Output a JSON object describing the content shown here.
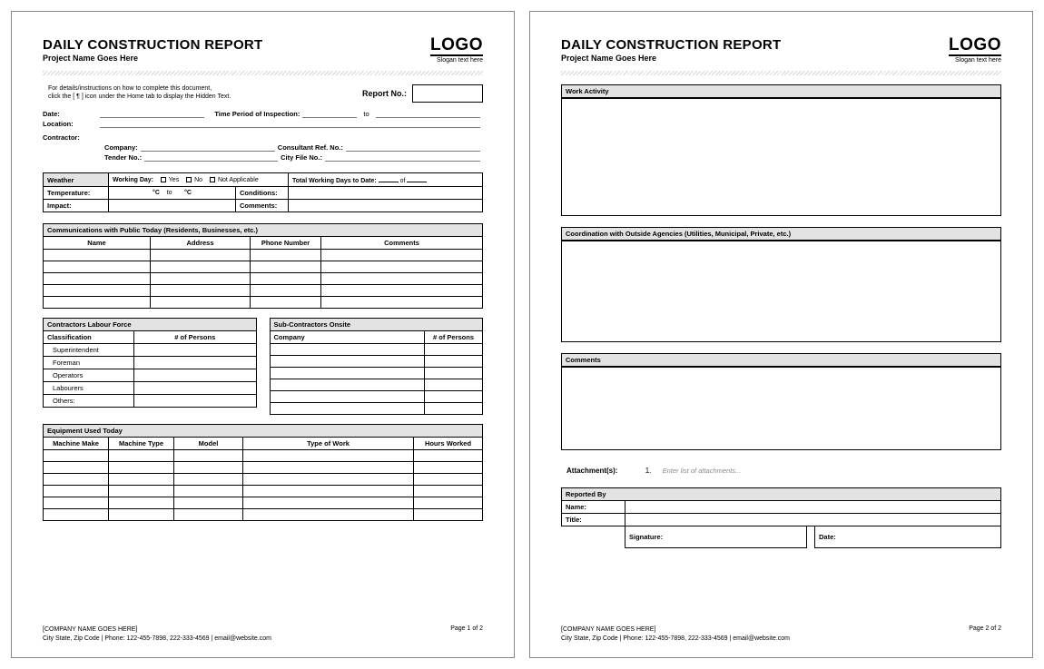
{
  "doc": {
    "title": "DAILY CONSTRUCTION REPORT",
    "project_line": "Project Name Goes Here",
    "logo_text": "LOGO",
    "slogan": "Slogan text here",
    "instructions_l1": "For details/instructions on how to complete this document,",
    "instructions_l2": "click the [ ¶ ] icon under the Home tab to display the Hidden Text.",
    "report_no_label": "Report No.:"
  },
  "info": {
    "date": "Date:",
    "tpi": "Time Period of Inspection:",
    "to": "to",
    "location": "Location:",
    "contractor": "Contractor:",
    "company": "Company:",
    "consultant_ref": "Consultant Ref. No.:",
    "tender_no": "Tender No.:",
    "city_file": "City File No.:"
  },
  "weather": {
    "header": "Weather",
    "working_day": "Working Day:",
    "yes": "Yes",
    "no": "No",
    "na": "Not Applicable",
    "total_days": "Total Working Days to Date:",
    "of": "of",
    "temperature": "Temperature:",
    "degc": "°C",
    "to": "to",
    "conditions": "Conditions:",
    "impact": "Impact:",
    "comments": "Comments:"
  },
  "comms": {
    "header": "Communications with Public Today (Residents, Businesses, etc.)",
    "cols": {
      "name": "Name",
      "address": "Address",
      "phone": "Phone Number",
      "comments": "Comments"
    },
    "rows": 5
  },
  "labour": {
    "header": "Contractors Labour Force",
    "cols": {
      "class": "Classification",
      "persons": "# of Persons"
    },
    "rows": [
      "Superintendent",
      "Foreman",
      "Operators",
      "Labourers",
      "Others:"
    ]
  },
  "subcon": {
    "header": "Sub-Contractors Onsite",
    "cols": {
      "company": "Company",
      "persons": "# of Persons"
    },
    "rows": 6
  },
  "equip": {
    "header": "Equipment Used Today",
    "cols": {
      "make": "Machine Make",
      "type": "Machine Type",
      "model": "Model",
      "work": "Type of Work",
      "hours": "Hours Worked"
    },
    "rows": 6
  },
  "p2": {
    "work_activity": "Work Activity",
    "coordination": "Coordination with Outside Agencies (Utilities, Municipal, Private, etc.)",
    "comments": "Comments",
    "attachments_lbl": "Attachment(s):",
    "attach_num": "1.",
    "attach_ph": "Enter list of attachments...",
    "reported_by": "Reported By",
    "name": "Name:",
    "title": "Title:",
    "signature": "Signature:",
    "date": "Date:"
  },
  "footer": {
    "company": "[COMPANY NAME GOES HERE]",
    "contact": "City State, Zip Code | Phone: 122-455-7898, 222-333-4569 | email@website.com",
    "p1": "Page 1 of 2",
    "p2": "Page 2 of 2"
  },
  "style": {
    "header_bg": "#e3e3e3",
    "border": "#000000",
    "page_border": "#888888"
  }
}
